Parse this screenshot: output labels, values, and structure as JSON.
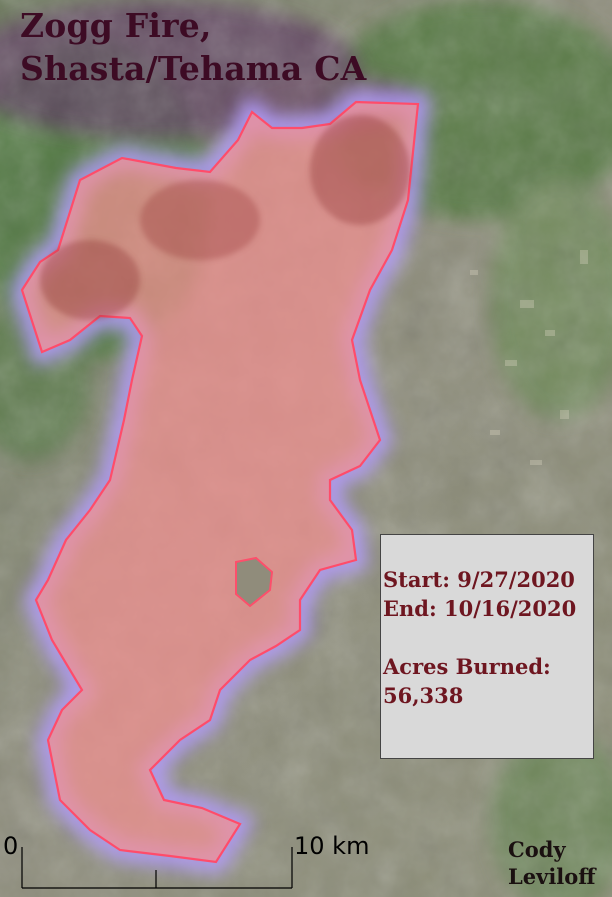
{
  "map": {
    "title_line1": "Zogg Fire,",
    "title_line2": "Shasta/Tehama CA",
    "fire_fill_color": "#f29090",
    "fire_outline_color": "#ff4c6a",
    "glow_color": "#b49cff"
  },
  "info": {
    "start": "Start: 9/27/2020",
    "end": "End: 10/16/2020",
    "acres_label": "Acres Burned:",
    "acres_value": "56,338"
  },
  "scale_bar": {
    "start_label": "0",
    "end_label": "10 km"
  },
  "credit": {
    "line1": "Cody",
    "line2": "Leviloff"
  }
}
